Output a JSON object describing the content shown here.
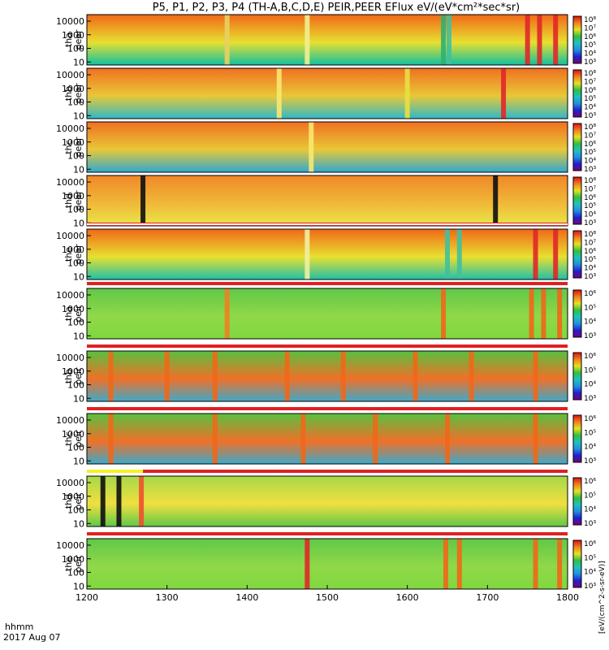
{
  "chart_data": {
    "type": "heatmap",
    "title": "P5, P1, P2, P3, P4 (TH-A,B,C,D,E) PEIR,PEER EFlux eV/(eV*cm²*sec*sr)",
    "xlabel_line1": "hhmm",
    "xlabel_line2": "2017 Aug 07",
    "x_ticks": [
      "1200",
      "1300",
      "1400",
      "1500",
      "1600",
      "1700",
      "1800"
    ],
    "xlim": [
      1200,
      1800
    ],
    "y_scale": "log",
    "y_ticks": [
      "10",
      "100",
      "1000",
      "10000"
    ],
    "ylim": [
      6,
      30000
    ],
    "colorbar_units": "[eV/(cm^2-s-sr-eV)]",
    "colorbar_ticks": [
      "10³",
      "10⁴",
      "10⁵",
      "10⁶",
      "10⁷",
      "10⁸"
    ],
    "colorbar_ticks_short": [
      "10³",
      "10⁴",
      "10⁵",
      "10⁶"
    ],
    "panels": [
      {
        "probe": "tha",
        "species": "peer",
        "bg": "#f06818",
        "low": "#10c0a0",
        "mid": "#e8e030",
        "cbar": "long",
        "flags": [],
        "events": [
          [
            1375,
            "#e8d060"
          ],
          [
            1475,
            "#f0f090"
          ],
          [
            1645,
            "#30b070"
          ],
          [
            1652,
            "#40c0a0"
          ],
          [
            1750,
            "#e02828"
          ],
          [
            1765,
            "#e02828"
          ],
          [
            1785,
            "#e02828"
          ]
        ]
      },
      {
        "probe": "thb",
        "species": "peer",
        "bg": "#f07020",
        "low": "#30b8c8",
        "mid": "#e8c838",
        "cbar": "long",
        "flags": [],
        "events": [
          [
            1440,
            "#f8e870"
          ],
          [
            1600,
            "#e8e040"
          ],
          [
            1720,
            "#e02828"
          ]
        ]
      },
      {
        "probe": "thc",
        "species": "peer",
        "bg": "#f07020",
        "low": "#30a8d0",
        "mid": "#e8c838",
        "cbar": "long",
        "flags": [],
        "events": [
          [
            1480,
            "#f8e870"
          ]
        ]
      },
      {
        "probe": "thd",
        "species": "peer",
        "bg": "#f08828",
        "low": "#e8e848",
        "mid": "#f0b838",
        "cbar": "long",
        "flags": [],
        "events": [
          [
            1270,
            "#101010"
          ],
          [
            1710,
            "#101010"
          ]
        ]
      },
      {
        "probe": "the",
        "species": "peer",
        "bg": "#f06818",
        "low": "#20c0a8",
        "mid": "#e8e030",
        "cbar": "long",
        "flags": [
          "red-white"
        ],
        "events": [
          [
            1475,
            "#f0f0a0"
          ],
          [
            1650,
            "#40c0a0"
          ],
          [
            1665,
            "#40c0a0"
          ],
          [
            1760,
            "#e02828"
          ],
          [
            1785,
            "#e02828"
          ]
        ]
      },
      {
        "probe": "tha",
        "species": "peir",
        "bg": "#60c848",
        "low": "#80d840",
        "mid": "#90d848",
        "cbar": "short",
        "flags": [
          "red"
        ],
        "events": [
          [
            1375,
            "#f08020"
          ],
          [
            1645,
            "#f06818"
          ],
          [
            1755,
            "#f06818"
          ],
          [
            1770,
            "#f06818"
          ],
          [
            1790,
            "#f06818"
          ]
        ]
      },
      {
        "probe": "thb",
        "species": "peir",
        "bg": "#58c040",
        "low": "#40a8c8",
        "mid": "#f07028",
        "cbar": "short",
        "flags": [
          "red"
        ],
        "events": [
          [
            1230,
            "#f06818"
          ],
          [
            1300,
            "#f06818"
          ],
          [
            1360,
            "#f06818"
          ],
          [
            1450,
            "#f06818"
          ],
          [
            1520,
            "#f06818"
          ],
          [
            1610,
            "#f06818"
          ],
          [
            1680,
            "#f06818"
          ],
          [
            1760,
            "#f06818"
          ]
        ]
      },
      {
        "probe": "thc",
        "species": "peir",
        "bg": "#58c040",
        "low": "#40a8c8",
        "mid": "#f07028",
        "cbar": "short",
        "flags": [
          "red"
        ],
        "events": [
          [
            1230,
            "#f06818"
          ],
          [
            1360,
            "#f06818"
          ],
          [
            1470,
            "#f06818"
          ],
          [
            1560,
            "#f06818"
          ],
          [
            1650,
            "#f06818"
          ],
          [
            1760,
            "#f06818"
          ]
        ]
      },
      {
        "probe": "thd",
        "species": "peir",
        "bg": "#a8d848",
        "low": "#60c848",
        "mid": "#f0e040",
        "cbar": "short",
        "flags": [
          "yellow-red"
        ],
        "events": [
          [
            1220,
            "#101010"
          ],
          [
            1240,
            "#101010"
          ],
          [
            1268,
            "#f05030"
          ]
        ]
      },
      {
        "probe": "the",
        "species": "peir",
        "bg": "#60c848",
        "low": "#80d840",
        "mid": "#90d848",
        "cbar": "short",
        "flags": [
          "red"
        ],
        "events": [
          [
            1475,
            "#e02828"
          ],
          [
            1648,
            "#f06818"
          ],
          [
            1665,
            "#f06818"
          ],
          [
            1760,
            "#f06818"
          ],
          [
            1790,
            "#f06818"
          ]
        ]
      }
    ]
  }
}
